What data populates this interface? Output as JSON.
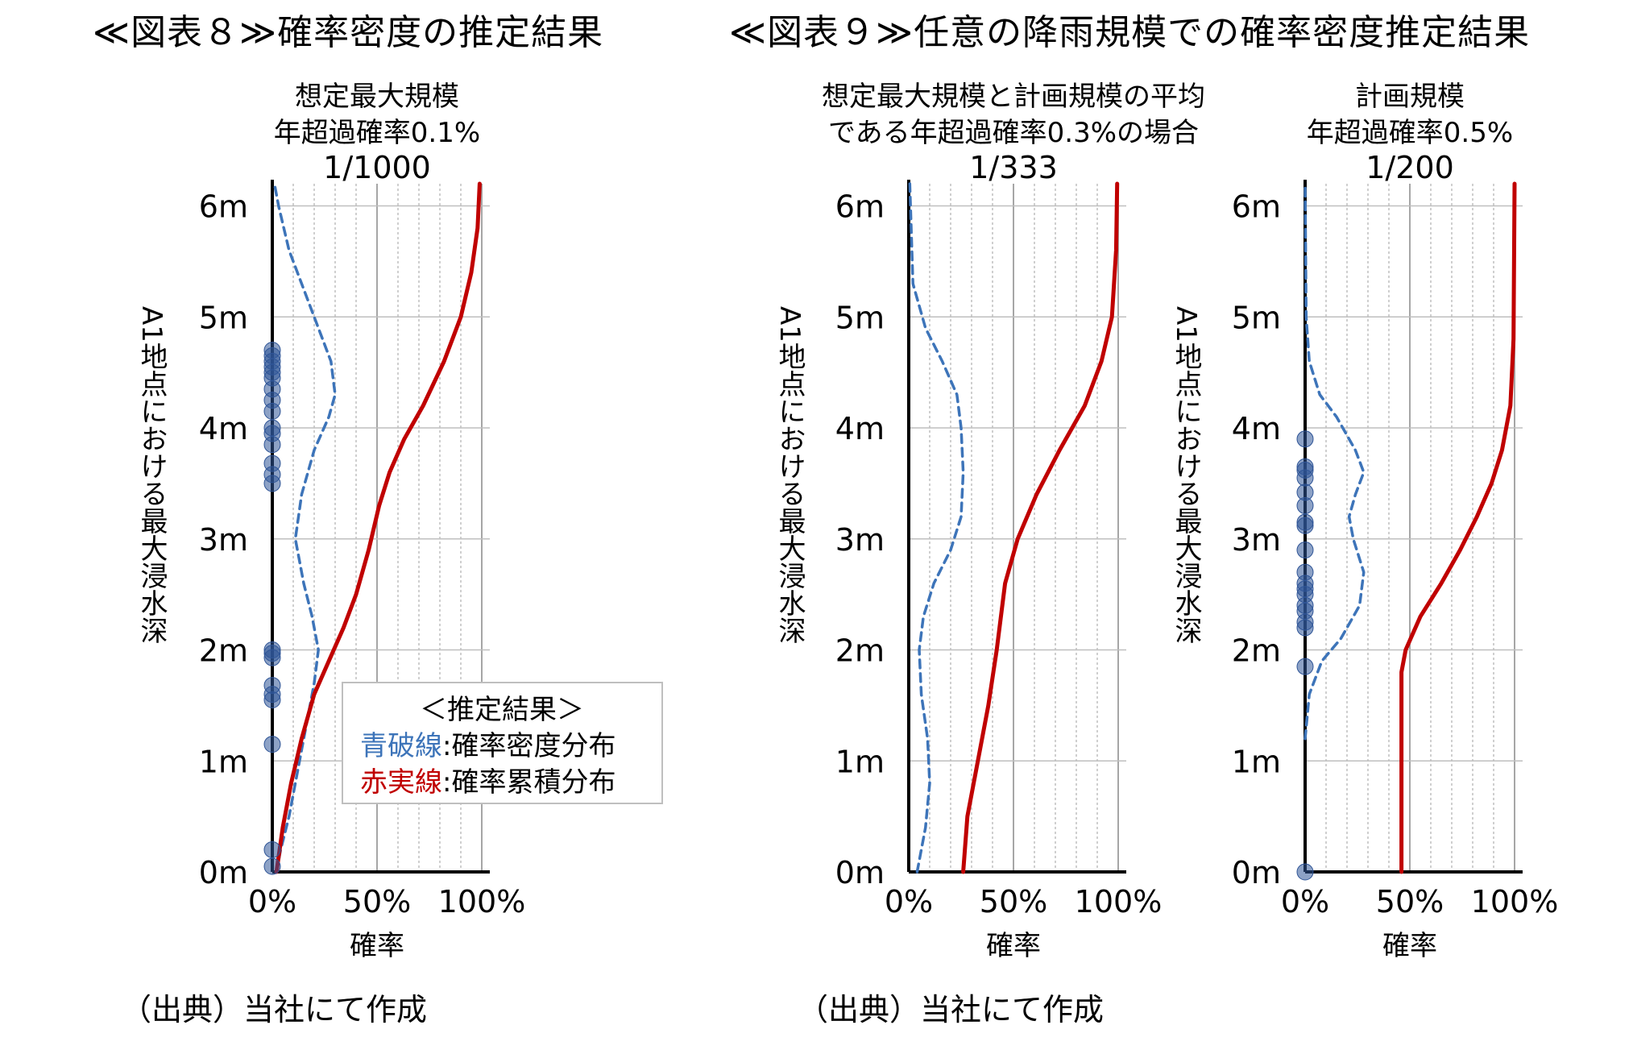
{
  "figure8": {
    "title": "≪図表８≫確率密度の推定結果",
    "source": "（出典）当社にて作成"
  },
  "figure9": {
    "title": "≪図表９≫任意の降雨規模での確率密度推定結果",
    "source": "（出典）当社にて作成"
  },
  "legend": {
    "title": "＜推定結果＞",
    "blue_name": "青破線",
    "blue_desc": ":確率密度分布",
    "red_name": "赤実線",
    "red_desc": ":確率累積分布"
  },
  "colors": {
    "density": "#3d74b9",
    "cumulative": "#c00000",
    "points": "#2f5597",
    "grid": "#bfbfbf",
    "axis": "#000000"
  },
  "chart_data": [
    {
      "type": "line",
      "title_lines": [
        "想定最大規模",
        "年超過確率0.1%",
        "1/1000"
      ],
      "ylabel": "A1地点における最大浸水深",
      "xlabel": "確率",
      "y_ticks": [
        "0m",
        "1m",
        "2m",
        "3m",
        "4m",
        "5m",
        "6m"
      ],
      "x_ticks": [
        "0%",
        "50%",
        "100%"
      ],
      "xlim": [
        0,
        100
      ],
      "ylim": [
        0,
        6.2
      ],
      "grid": true,
      "legend": "bottom-right",
      "series": [
        {
          "name": "青破線",
          "style": "dashed",
          "color": "#3d74b9",
          "points": [
            [
              2,
              0
            ],
            [
              4,
              0.2
            ],
            [
              8,
              0.5
            ],
            [
              11,
              0.8
            ],
            [
              14,
              1.1
            ],
            [
              17,
              1.4
            ],
            [
              20,
              1.7
            ],
            [
              22,
              2.0
            ],
            [
              19,
              2.3
            ],
            [
              15,
              2.6
            ],
            [
              11,
              3.0
            ],
            [
              14,
              3.4
            ],
            [
              20,
              3.8
            ],
            [
              27,
              4.1
            ],
            [
              30,
              4.3
            ],
            [
              28,
              4.6
            ],
            [
              22,
              4.9
            ],
            [
              14,
              5.3
            ],
            [
              8,
              5.6
            ],
            [
              3,
              6.0
            ],
            [
              1,
              6.2
            ]
          ]
        },
        {
          "name": "赤実線",
          "style": "solid",
          "color": "#c00000",
          "points": [
            [
              2,
              0
            ],
            [
              5,
              0.4
            ],
            [
              9,
              0.8
            ],
            [
              14,
              1.2
            ],
            [
              20,
              1.6
            ],
            [
              27,
              1.9
            ],
            [
              34,
              2.2
            ],
            [
              40,
              2.5
            ],
            [
              46,
              2.9
            ],
            [
              51,
              3.3
            ],
            [
              56,
              3.6
            ],
            [
              63,
              3.9
            ],
            [
              72,
              4.2
            ],
            [
              82,
              4.6
            ],
            [
              90,
              5.0
            ],
            [
              95,
              5.4
            ],
            [
              98,
              5.8
            ],
            [
              99,
              6.2
            ]
          ]
        }
      ],
      "observations_m": [
        0.05,
        0.2,
        1.15,
        1.55,
        1.6,
        1.68,
        1.93,
        1.97,
        2.0,
        3.5,
        3.58,
        3.68,
        3.85,
        3.95,
        4.0,
        4.15,
        4.25,
        4.35,
        4.45,
        4.5,
        4.55,
        4.6,
        4.65,
        4.7
      ]
    },
    {
      "type": "line",
      "title_lines": [
        "想定最大規模と計画規模の平均",
        "である年超過確率0.3%の場合",
        "1/333"
      ],
      "ylabel": "A1地点における最大浸水深",
      "xlabel": "確率",
      "y_ticks": [
        "0m",
        "1m",
        "2m",
        "3m",
        "4m",
        "5m",
        "6m"
      ],
      "x_ticks": [
        "0%",
        "50%",
        "100%"
      ],
      "xlim": [
        0,
        100
      ],
      "ylim": [
        0,
        6.2
      ],
      "grid": true,
      "series": [
        {
          "style": "dashed",
          "color": "#3d74b9",
          "points": [
            [
              4,
              0
            ],
            [
              8,
              0.4
            ],
            [
              10,
              0.8
            ],
            [
              9,
              1.2
            ],
            [
              6,
              1.6
            ],
            [
              5,
              2.0
            ],
            [
              7,
              2.3
            ],
            [
              12,
              2.6
            ],
            [
              20,
              2.9
            ],
            [
              25,
              3.2
            ],
            [
              26,
              3.6
            ],
            [
              25,
              4.0
            ],
            [
              23,
              4.3
            ],
            [
              16,
              4.6
            ],
            [
              8,
              4.9
            ],
            [
              2,
              5.3
            ],
            [
              0.5,
              6.2
            ]
          ]
        },
        {
          "style": "solid",
          "color": "#c00000",
          "points": [
            [
              26,
              0
            ],
            [
              28,
              0.5
            ],
            [
              33,
              1.0
            ],
            [
              38,
              1.5
            ],
            [
              42,
              2.0
            ],
            [
              46,
              2.6
            ],
            [
              52,
              3.0
            ],
            [
              61,
              3.4
            ],
            [
              72,
              3.8
            ],
            [
              84,
              4.2
            ],
            [
              92,
              4.6
            ],
            [
              97,
              5.0
            ],
            [
              99,
              5.6
            ],
            [
              99.5,
              6.2
            ]
          ]
        }
      ],
      "observations_m": []
    },
    {
      "type": "line",
      "title_lines": [
        "計画規模",
        "年超過確率0.5%",
        "1/200"
      ],
      "ylabel": "A1地点における最大浸水深",
      "xlabel": "確率",
      "y_ticks": [
        "0m",
        "1m",
        "2m",
        "3m",
        "4m",
        "5m",
        "6m"
      ],
      "x_ticks": [
        "0%",
        "50%",
        "100%"
      ],
      "xlim": [
        0,
        100
      ],
      "ylim": [
        0,
        6.2
      ],
      "grid": true,
      "series": [
        {
          "style": "dashed",
          "color": "#3d74b9",
          "points": [
            [
              0,
              1.2
            ],
            [
              2,
              1.6
            ],
            [
              8,
              1.9
            ],
            [
              17,
              2.1
            ],
            [
              26,
              2.4
            ],
            [
              28,
              2.7
            ],
            [
              23,
              3.0
            ],
            [
              21,
              3.2
            ],
            [
              24,
              3.4
            ],
            [
              28,
              3.6
            ],
            [
              24,
              3.8
            ],
            [
              15,
              4.1
            ],
            [
              7,
              4.3
            ],
            [
              2,
              4.6
            ],
            [
              0.5,
              5.0
            ],
            [
              0,
              6.2
            ]
          ]
        },
        {
          "style": "solid",
          "color": "#c00000",
          "points": [
            [
              46,
              0
            ],
            [
              46,
              1.0
            ],
            [
              46,
              1.8
            ],
            [
              48,
              2.0
            ],
            [
              55,
              2.3
            ],
            [
              65,
              2.6
            ],
            [
              74,
              2.9
            ],
            [
              82,
              3.2
            ],
            [
              89,
              3.5
            ],
            [
              94,
              3.8
            ],
            [
              98,
              4.2
            ],
            [
              99.5,
              4.8
            ],
            [
              100,
              6.2
            ]
          ]
        }
      ],
      "observations_m": [
        0,
        1.85,
        2.2,
        2.25,
        2.35,
        2.4,
        2.5,
        2.55,
        2.6,
        2.7,
        2.9,
        3.12,
        3.15,
        3.3,
        3.42,
        3.55,
        3.62,
        3.65,
        3.9
      ]
    }
  ]
}
